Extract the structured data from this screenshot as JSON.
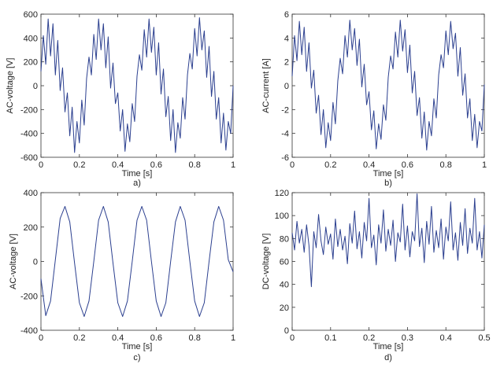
{
  "chart_data": [
    {
      "id": "a",
      "type": "line",
      "panel_label": "a)",
      "xlabel": "Time [s]",
      "ylabel": "AC-voltage [V]",
      "xlim": [
        0,
        1
      ],
      "ylim": [
        -600,
        600
      ],
      "xticks": [
        0,
        0.2,
        0.4,
        0.6,
        0.8,
        1
      ],
      "xtick_labels": [
        "0",
        "0.2",
        "0.4",
        "0.6",
        "0.8",
        "1"
      ],
      "yticks": [
        -600,
        -400,
        -200,
        0,
        200,
        400,
        600
      ],
      "ytick_labels": [
        "-600",
        "-400",
        "-200",
        "0",
        "200",
        "400",
        "600"
      ],
      "color": "#2b3f8f",
      "series": [
        {
          "x": [
            0,
            0.0125,
            0.025,
            0.0375,
            0.05,
            0.0625,
            0.075,
            0.0875,
            0.1,
            0.1125,
            0.125,
            0.1375,
            0.15,
            0.1625,
            0.175,
            0.1875,
            0.2,
            0.2125,
            0.225,
            0.2375,
            0.25,
            0.2625,
            0.275,
            0.2875,
            0.3,
            0.3125,
            0.325,
            0.3375,
            0.35,
            0.3625,
            0.375,
            0.3875,
            0.4,
            0.4125,
            0.425,
            0.4375,
            0.45,
            0.4625,
            0.475,
            0.4875,
            0.5,
            0.5125,
            0.525,
            0.5375,
            0.55,
            0.5625,
            0.575,
            0.5875,
            0.6,
            0.6125,
            0.625,
            0.6375,
            0.65,
            0.6625,
            0.675,
            0.6875,
            0.7,
            0.7125,
            0.725,
            0.7375,
            0.75,
            0.7625,
            0.775,
            0.7875,
            0.8,
            0.8125,
            0.825,
            0.8375,
            0.85,
            0.8625,
            0.875,
            0.8875,
            0.9,
            0.9125,
            0.925,
            0.9375,
            0.95,
            0.9625,
            0.975,
            0.9875,
            1
          ],
          "y": [
            120,
            420,
            180,
            560,
            250,
            520,
            90,
            380,
            -40,
            150,
            -220,
            -60,
            -420,
            -180,
            -560,
            -300,
            -480,
            -120,
            -330,
            60,
            240,
            90,
            430,
            220,
            560,
            300,
            520,
            150,
            410,
            -20,
            190,
            -150,
            -60,
            -380,
            -200,
            -550,
            -320,
            -470,
            -150,
            -300,
            80,
            260,
            130,
            470,
            240,
            560,
            280,
            490,
            90,
            360,
            -70,
            140,
            -260,
            -90,
            -460,
            -200,
            -560,
            -310,
            -440,
            -100,
            -280,
            90,
            270,
            140,
            480,
            250,
            570,
            300,
            460,
            70,
            330,
            -90,
            120,
            -280,
            -100,
            -480,
            -230,
            -540,
            -300,
            -400,
            0
          ]
        }
      ]
    },
    {
      "id": "b",
      "type": "line",
      "panel_label": "b)",
      "xlabel": "Time [s]",
      "ylabel": "AC-current [A]",
      "xlim": [
        0,
        1
      ],
      "ylim": [
        -6,
        6
      ],
      "xticks": [
        0,
        0.2,
        0.4,
        0.6,
        0.8,
        1
      ],
      "xtick_labels": [
        "0",
        "0.2",
        "0.4",
        "0.6",
        "0.8",
        "1"
      ],
      "yticks": [
        -6,
        -4,
        -2,
        0,
        2,
        4,
        6
      ],
      "ytick_labels": [
        "-6",
        "-4",
        "-2",
        "0",
        "2",
        "4",
        "6"
      ],
      "color": "#2b3f8f",
      "series": [
        {
          "x": [
            0,
            0.0125,
            0.025,
            0.0375,
            0.05,
            0.0625,
            0.075,
            0.0875,
            0.1,
            0.1125,
            0.125,
            0.1375,
            0.15,
            0.1625,
            0.175,
            0.1875,
            0.2,
            0.2125,
            0.225,
            0.2375,
            0.25,
            0.2625,
            0.275,
            0.2875,
            0.3,
            0.3125,
            0.325,
            0.3375,
            0.35,
            0.3625,
            0.375,
            0.3875,
            0.4,
            0.4125,
            0.425,
            0.4375,
            0.45,
            0.4625,
            0.475,
            0.4875,
            0.5,
            0.5125,
            0.525,
            0.5375,
            0.55,
            0.5625,
            0.575,
            0.5875,
            0.6,
            0.6125,
            0.625,
            0.6375,
            0.65,
            0.6625,
            0.675,
            0.6875,
            0.7,
            0.7125,
            0.725,
            0.7375,
            0.75,
            0.7625,
            0.775,
            0.7875,
            0.8,
            0.8125,
            0.825,
            0.8375,
            0.85,
            0.8625,
            0.875,
            0.8875,
            0.9,
            0.9125,
            0.925,
            0.9375,
            0.95,
            0.9625,
            0.975,
            0.9875,
            1
          ],
          "y": [
            0.8,
            4.2,
            2.1,
            5.4,
            2.6,
            4.9,
            1.2,
            3.6,
            -0.2,
            1.3,
            -2.3,
            -0.8,
            -4.1,
            -2.0,
            -5.2,
            -3.1,
            -4.6,
            -1.4,
            -3.2,
            0.4,
            2.3,
            1.0,
            4.2,
            2.4,
            5.5,
            3.0,
            4.8,
            1.7,
            3.9,
            -0.1,
            1.8,
            -1.6,
            -0.5,
            -3.7,
            -2.1,
            -5.3,
            -3.2,
            -4.5,
            -1.6,
            -2.9,
            0.7,
            2.5,
            1.4,
            4.5,
            2.4,
            5.5,
            2.9,
            4.7,
            1.1,
            3.4,
            -0.6,
            1.2,
            -2.5,
            -1.0,
            -4.4,
            -2.2,
            -5.4,
            -3.0,
            -4.2,
            -1.1,
            -2.7,
            0.9,
            2.6,
            1.5,
            4.6,
            2.6,
            5.4,
            3.1,
            4.4,
            0.8,
            3.2,
            -0.8,
            1.0,
            -2.7,
            -1.1,
            -4.6,
            -2.4,
            -5.2,
            -3.0,
            -3.8,
            0.1
          ]
        }
      ]
    },
    {
      "id": "c",
      "type": "line",
      "panel_label": "c)",
      "xlabel": "Time [s]",
      "ylabel": "AC-voltage [V]",
      "xlim": [
        0,
        1
      ],
      "ylim": [
        -400,
        400
      ],
      "xticks": [
        0,
        0.2,
        0.4,
        0.6,
        0.8,
        1
      ],
      "xtick_labels": [
        "0",
        "0.2",
        "0.4",
        "0.6",
        "0.8",
        "1"
      ],
      "yticks": [
        -400,
        -200,
        0,
        200,
        400
      ],
      "ytick_labels": [
        "-400",
        "-200",
        "0",
        "200",
        "400"
      ],
      "color": "#2b3f8f",
      "series": [
        {
          "x": [
            0,
            0.025,
            0.05,
            0.075,
            0.1,
            0.125,
            0.15,
            0.175,
            0.2,
            0.225,
            0.25,
            0.275,
            0.3,
            0.325,
            0.35,
            0.375,
            0.4,
            0.425,
            0.45,
            0.475,
            0.5,
            0.525,
            0.55,
            0.575,
            0.6,
            0.625,
            0.65,
            0.675,
            0.7,
            0.725,
            0.75,
            0.775,
            0.8,
            0.825,
            0.85,
            0.875,
            0.9,
            0.925,
            0.95,
            0.975,
            1
          ],
          "y": [
            -100,
            -315,
            -230,
            10,
            250,
            320,
            230,
            -10,
            -240,
            -320,
            -230,
            0,
            240,
            320,
            230,
            -10,
            -240,
            -320,
            -230,
            0,
            240,
            320,
            240,
            0,
            -230,
            -320,
            -240,
            0,
            230,
            320,
            240,
            0,
            -230,
            -320,
            -240,
            0,
            230,
            320,
            240,
            10,
            -60
          ]
        }
      ]
    },
    {
      "id": "d",
      "type": "line",
      "panel_label": "d)",
      "xlabel": "Time [s]",
      "ylabel": "DC-voltage [V]",
      "xlim": [
        0,
        0.5
      ],
      "ylim": [
        0,
        120
      ],
      "xticks": [
        0,
        0.1,
        0.2,
        0.3,
        0.4,
        0.5
      ],
      "xtick_labels": [
        "0",
        "0.1",
        "0.2",
        "0.3",
        "0.4",
        "0.5"
      ],
      "yticks": [
        0,
        20,
        40,
        60,
        80,
        100,
        120
      ],
      "ytick_labels": [
        "0",
        "20",
        "40",
        "60",
        "80",
        "100",
        "120"
      ],
      "color": "#2b3f8f",
      "series": [
        {
          "x": [
            0,
            0.00625,
            0.0125,
            0.01875,
            0.025,
            0.03125,
            0.0375,
            0.04375,
            0.05,
            0.05625,
            0.0625,
            0.06875,
            0.075,
            0.08125,
            0.0875,
            0.09375,
            0.1,
            0.10625,
            0.1125,
            0.11875,
            0.125,
            0.13125,
            0.1375,
            0.14375,
            0.15,
            0.15625,
            0.1625,
            0.16875,
            0.175,
            0.18125,
            0.1875,
            0.19375,
            0.2,
            0.20625,
            0.2125,
            0.21875,
            0.225,
            0.23125,
            0.2375,
            0.24375,
            0.25,
            0.25625,
            0.2625,
            0.26875,
            0.275,
            0.28125,
            0.2875,
            0.29375,
            0.3,
            0.30625,
            0.3125,
            0.31875,
            0.325,
            0.33125,
            0.3375,
            0.34375,
            0.35,
            0.35625,
            0.3625,
            0.36875,
            0.375,
            0.38125,
            0.3875,
            0.39375,
            0.4,
            0.40625,
            0.4125,
            0.41875,
            0.425,
            0.43125,
            0.4375,
            0.44375,
            0.45,
            0.45625,
            0.4625,
            0.46875,
            0.475,
            0.48125,
            0.4875,
            0.49375,
            0.5
          ],
          "y": [
            85,
            70,
            95,
            76,
            88,
            68,
            92,
            74,
            38,
            86,
            72,
            101,
            78,
            66,
            90,
            75,
            84,
            62,
            97,
            73,
            88,
            70,
            82,
            58,
            93,
            76,
            104,
            71,
            86,
            63,
            94,
            78,
            115,
            72,
            83,
            57,
            92,
            76,
            105,
            69,
            88,
            74,
            96,
            60,
            85,
            77,
            110,
            70,
            91,
            64,
            86,
            78,
            119,
            73,
            89,
            59,
            95,
            75,
            108,
            68,
            87,
            72,
            97,
            62,
            90,
            78,
            112,
            70,
            85,
            61,
            94,
            74,
            106,
            67,
            89,
            76,
            115,
            70,
            86,
            63,
            92
          ]
        }
      ]
    }
  ]
}
